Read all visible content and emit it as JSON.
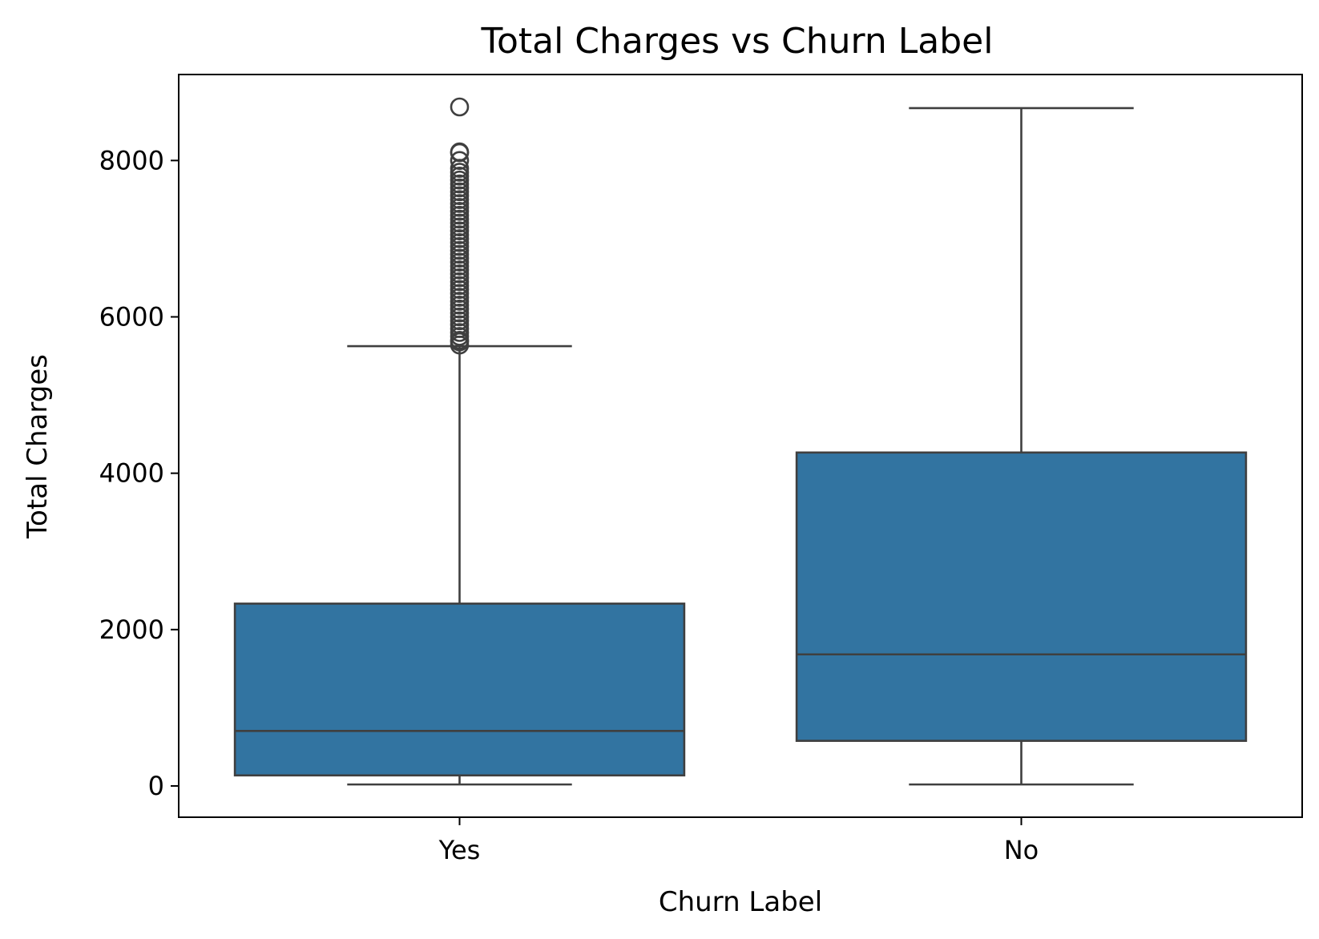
{
  "chart_data": {
    "type": "box",
    "title": "Total Charges vs Churn Label",
    "xlabel": "Churn Label",
    "ylabel": "Total Charges",
    "ylim": [
      -400,
      9100
    ],
    "yticks": [
      0,
      2000,
      4000,
      6000,
      8000
    ],
    "grid": false,
    "box_color": "#3274a1",
    "line_color": "#3f3f3f",
    "categories": [
      "Yes",
      "No"
    ],
    "boxes": [
      {
        "category": "Yes",
        "whisker_low": 19,
        "q1": 135,
        "median": 704,
        "q3": 2332,
        "whisker_high": 5625,
        "outliers": [
          5640,
          5680,
          5700,
          5750,
          5800,
          5850,
          5900,
          5950,
          6000,
          6050,
          6100,
          6150,
          6200,
          6250,
          6300,
          6350,
          6400,
          6450,
          6500,
          6550,
          6600,
          6650,
          6700,
          6750,
          6800,
          6850,
          6900,
          6950,
          7000,
          7050,
          7100,
          7150,
          7200,
          7250,
          7300,
          7350,
          7400,
          7450,
          7500,
          7550,
          7600,
          7650,
          7700,
          7750,
          7800,
          7850,
          7900,
          8000,
          8100,
          8110,
          8685
        ]
      },
      {
        "category": "No",
        "whisker_low": 19,
        "q1": 577,
        "median": 1683,
        "q3": 4265,
        "whisker_high": 8670,
        "outliers": []
      }
    ]
  }
}
